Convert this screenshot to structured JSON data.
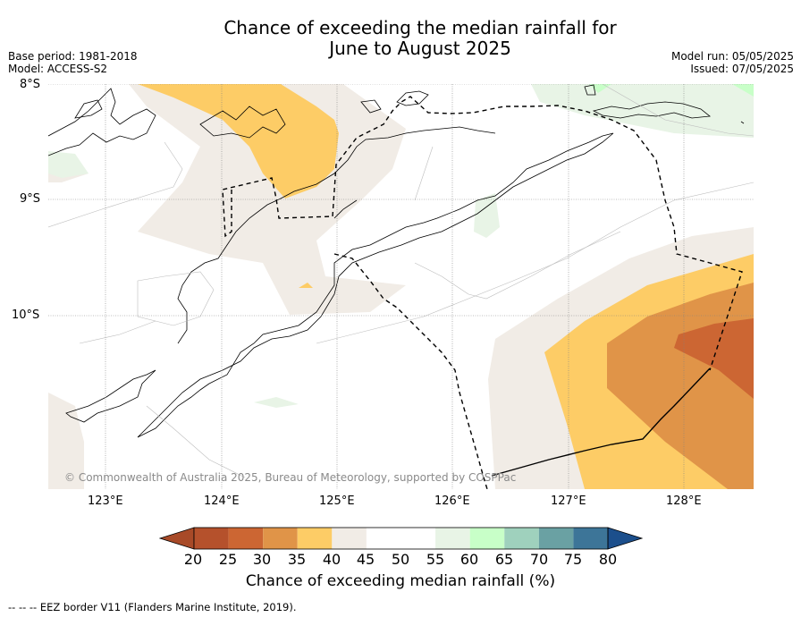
{
  "title": {
    "line1": "Chance of exceeding the median rainfall for",
    "line2": "June to August 2025"
  },
  "meta_left": {
    "base_period": "Base period: 1981-2018",
    "model": "Model: ACCESS-S2"
  },
  "meta_right": {
    "model_run": "Model run: 05/05/2025",
    "issued": "Issued: 07/05/2025"
  },
  "latitude_labels": [
    "8°S",
    "9°S",
    "10°S"
  ],
  "longitude_labels": [
    "123°E",
    "124°E",
    "125°E",
    "126°E",
    "127°E",
    "128°E"
  ],
  "copyright": "© Commonwealth of Australia 2025, Bureau of Meteorology, supported by COSPPac",
  "colorbar": {
    "ticks": [
      "20",
      "25",
      "30",
      "35",
      "40",
      "45",
      "50",
      "55",
      "60",
      "65",
      "70",
      "75",
      "80"
    ],
    "label": "Chance of exceeding median rainfall (%)",
    "colors": [
      "#a84a28",
      "#b5512c",
      "#cc6633",
      "#e09448",
      "#fdcc66",
      "#f1ece6",
      "#ffffff",
      "#ffffff",
      "#e8f4e6",
      "#c8ffc8",
      "#9fd1bd",
      "#6aa1a3",
      "#3d7598",
      "#1c4f8c"
    ]
  },
  "legend_footnote": "-- -- -- EEZ border V11 (Flanders Marine Institute, 2019).",
  "colors": {
    "below_median_orange": "#fdcc66",
    "light_orange": "#e09448",
    "dark_orange": "#cc6633",
    "neutral_beige": "#f1ece6",
    "light_green": "#e8f4e6"
  }
}
